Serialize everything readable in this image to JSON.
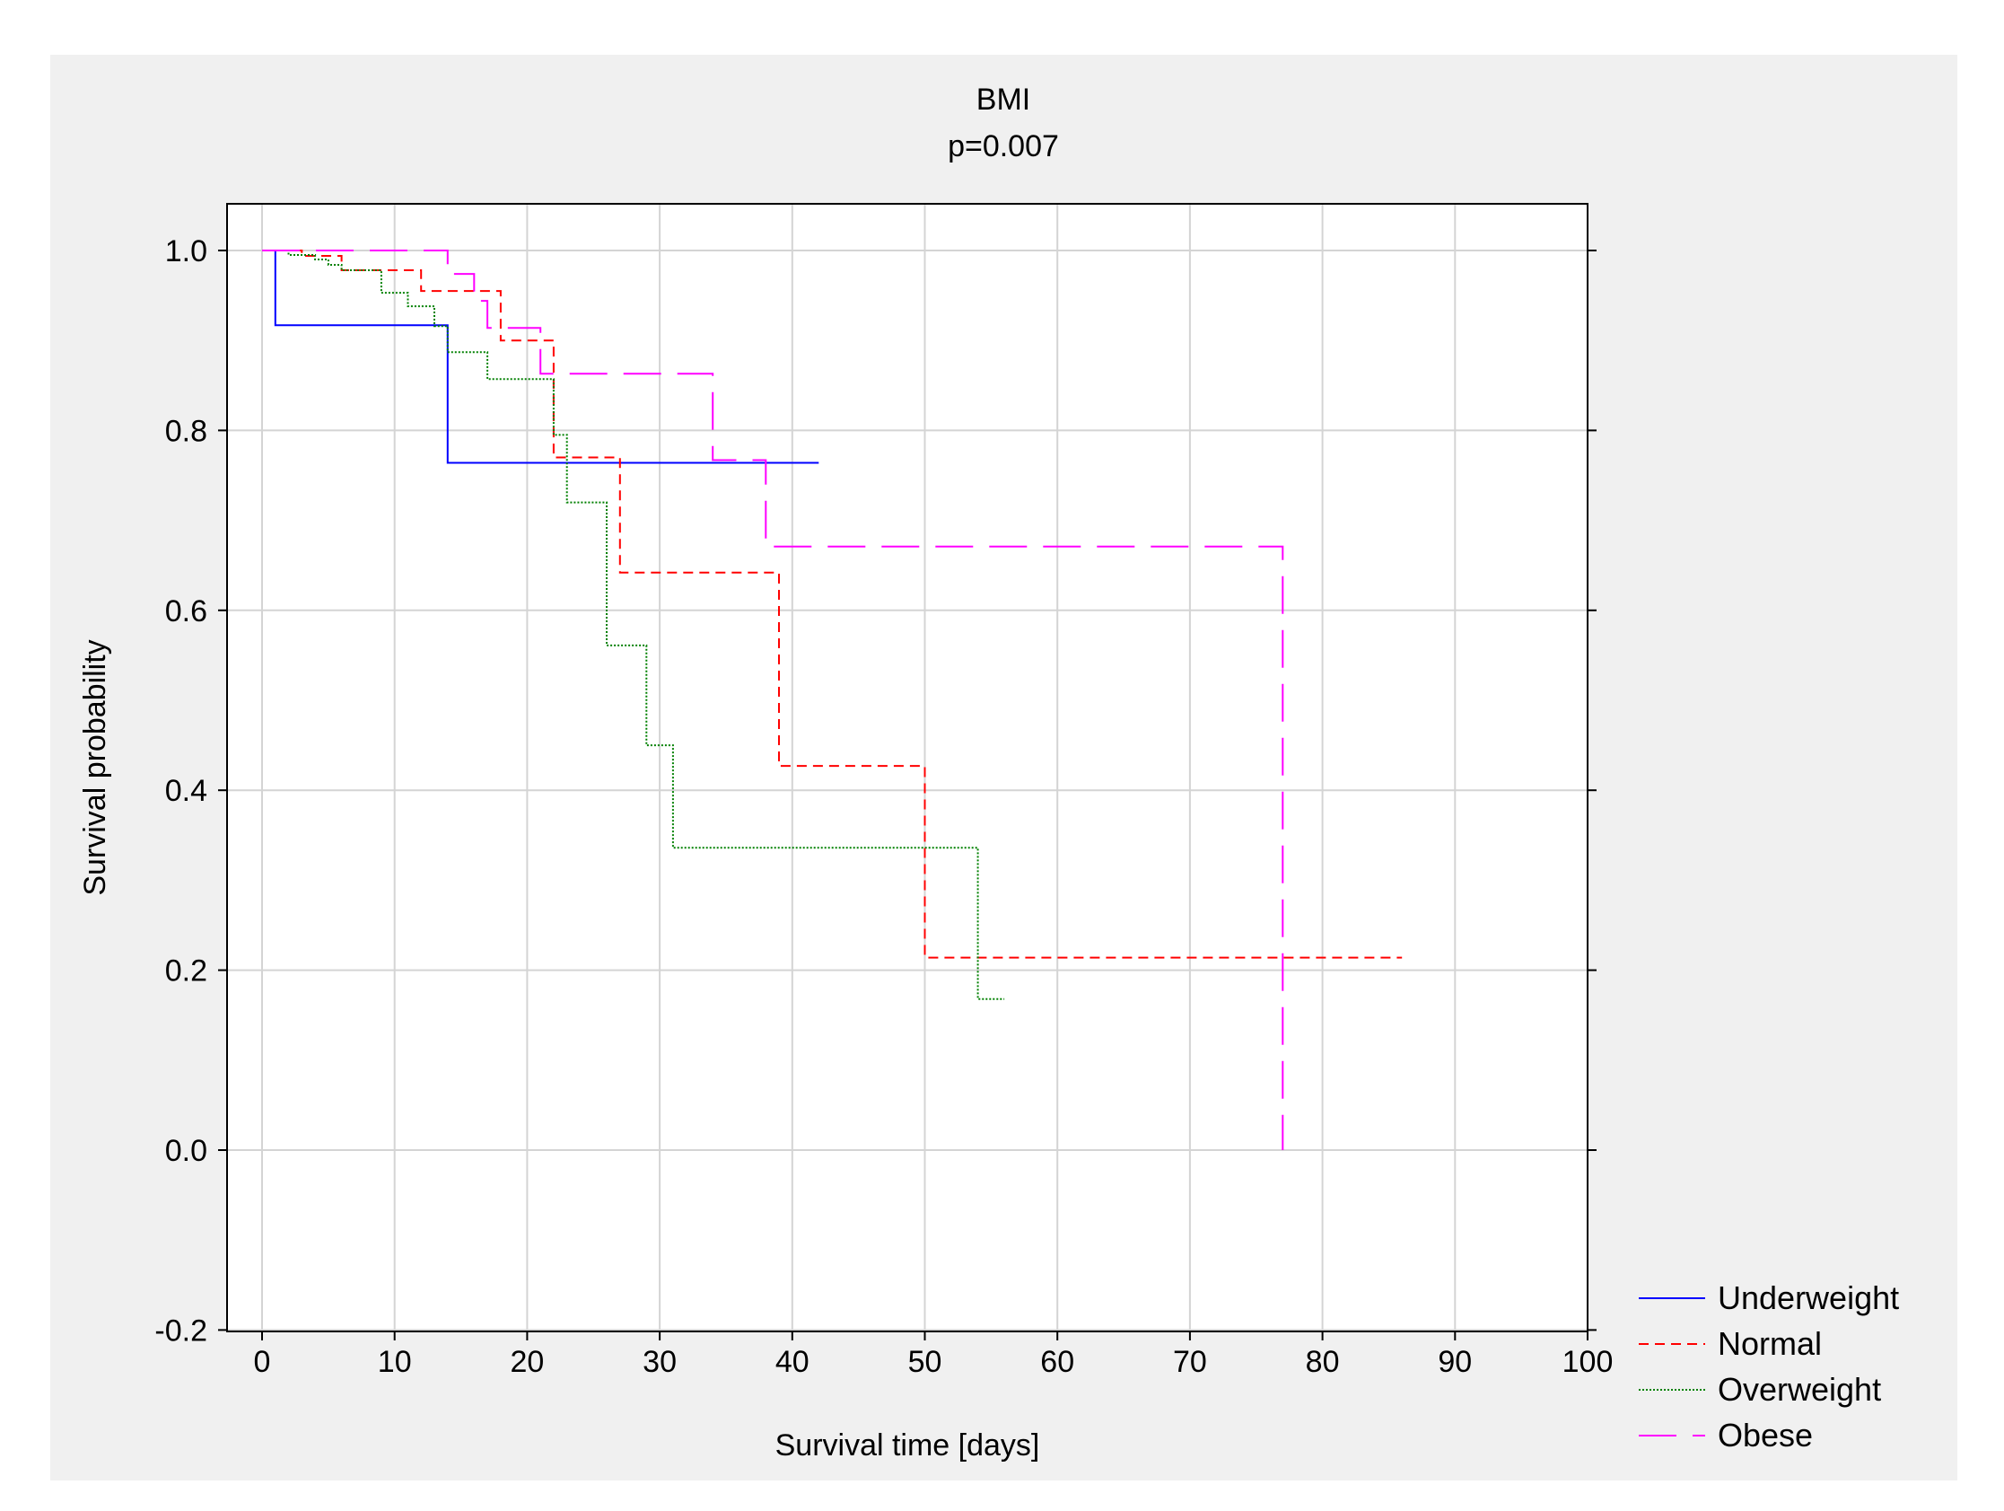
{
  "chart_data": {
    "type": "line",
    "title": "BMI",
    "subtitle": "p=0.007",
    "xlabel": "Survival time [days]",
    "ylabel": "Survival probability",
    "xlim": [
      -2.5,
      100
    ],
    "ylim": [
      -0.2,
      1.055
    ],
    "xticks": [
      0,
      10,
      20,
      30,
      40,
      50,
      60,
      70,
      80,
      90,
      100
    ],
    "yticks": [
      -0.2,
      0.0,
      0.2,
      0.4,
      0.6,
      0.8,
      1.0
    ],
    "xtick_labels": [
      "0",
      "10",
      "20",
      "30",
      "40",
      "50",
      "60",
      "70",
      "80",
      "90",
      "100"
    ],
    "ytick_labels": [
      "-0.2",
      "0.0",
      "0.2",
      "0.4",
      "0.6",
      "0.8",
      "1.0"
    ],
    "grid": true,
    "legend_position": "bottom-right, outside plot",
    "colors": {
      "page_background": "#f0f0f0",
      "plot_background": "#ffffff",
      "grid": "#d4d4d4"
    },
    "series": [
      {
        "name": "Underweight",
        "color": "#0000ff",
        "dash": "solid",
        "x": [
          0,
          1,
          1,
          14,
          14,
          42
        ],
        "y": [
          1.0,
          1.0,
          0.917,
          0.917,
          0.764,
          0.764
        ]
      },
      {
        "name": "Normal",
        "color": "#ff0000",
        "dash": "short-dash",
        "x": [
          0,
          3,
          3,
          6,
          6,
          12,
          12,
          18,
          18,
          22,
          22,
          27,
          27,
          39,
          39,
          50,
          50,
          86
        ],
        "y": [
          1.0,
          1.0,
          0.994,
          0.994,
          0.978,
          0.978,
          0.955,
          0.955,
          0.9,
          0.9,
          0.77,
          0.77,
          0.642,
          0.642,
          0.427,
          0.427,
          0.214,
          0.214
        ]
      },
      {
        "name": "Overweight",
        "color": "#008000",
        "dash": "dotted",
        "x": [
          0,
          2,
          2,
          4,
          4,
          5,
          5,
          6,
          6,
          9,
          9,
          11,
          11,
          13,
          13,
          14,
          14,
          17,
          17,
          22,
          22,
          23,
          23,
          26,
          26,
          29,
          29,
          31,
          31,
          54,
          54,
          56
        ],
        "y": [
          1.0,
          1.0,
          0.995,
          0.995,
          0.99,
          0.99,
          0.984,
          0.984,
          0.978,
          0.978,
          0.953,
          0.953,
          0.938,
          0.938,
          0.916,
          0.916,
          0.887,
          0.887,
          0.857,
          0.857,
          0.795,
          0.795,
          0.72,
          0.72,
          0.561,
          0.561,
          0.45,
          0.45,
          0.336,
          0.336,
          0.168,
          0.168
        ]
      },
      {
        "name": "Obese",
        "color": "#ff00ff",
        "dash": "long-dash",
        "x": [
          0,
          14,
          14,
          16,
          16,
          17,
          17,
          21,
          21,
          34,
          34,
          38,
          38,
          77,
          77
        ],
        "y": [
          1.0,
          1.0,
          0.974,
          0.974,
          0.944,
          0.944,
          0.914,
          0.914,
          0.863,
          0.863,
          0.767,
          0.767,
          0.671,
          0.671,
          0.0
        ]
      }
    ]
  }
}
